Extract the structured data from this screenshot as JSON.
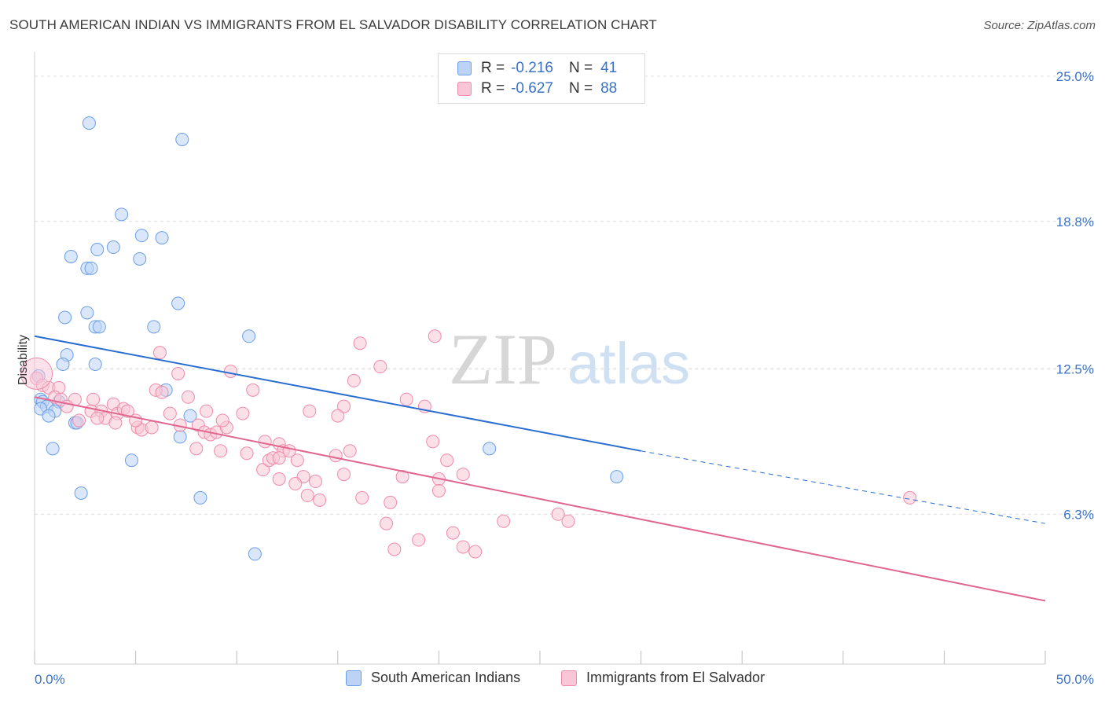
{
  "title": "SOUTH AMERICAN INDIAN VS IMMIGRANTS FROM EL SALVADOR DISABILITY CORRELATION CHART",
  "source": "Source: ZipAtlas.com",
  "watermark": {
    "zip": "ZIP",
    "atlas": "atlas"
  },
  "legend": {
    "rows": [
      {
        "r_label": "R =",
        "r_value": "-0.216",
        "n_label": "N =",
        "n_value": "41",
        "color": "#6b9ee8",
        "fill": "#bcd3f5"
      },
      {
        "r_label": "R =",
        "r_value": "-0.627",
        "n_label": "N =",
        "n_value": "88",
        "color": "#ee8bab",
        "fill": "#f8c6d6"
      }
    ]
  },
  "chart_data": {
    "type": "scatter",
    "title": "SOUTH AMERICAN INDIAN VS IMMIGRANTS FROM EL SALVADOR DISABILITY CORRELATION CHART",
    "xlabel": "",
    "ylabel": "Disability",
    "xlim": [
      0,
      50
    ],
    "ylim": [
      0,
      26
    ],
    "x_tick_labels": [
      "0.0%",
      "50.0%"
    ],
    "y_ticks": [
      6.3,
      12.5,
      18.8,
      25.0
    ],
    "y_tick_labels": [
      "6.3%",
      "12.5%",
      "18.8%",
      "25.0%"
    ],
    "grid": true,
    "series": [
      {
        "name": "South American Indians",
        "color": "#6b9ee8",
        "fill": "#bcd3f5",
        "trend": {
          "x0": 0,
          "y0": 13.9,
          "x1": 30,
          "y1": 9.0,
          "dash_to_x": 50,
          "dash_to_y": 5.9
        },
        "points": [
          [
            2.7,
            23.0
          ],
          [
            7.3,
            22.3
          ],
          [
            4.3,
            19.1
          ],
          [
            5.3,
            18.2
          ],
          [
            6.3,
            18.1
          ],
          [
            3.1,
            17.6
          ],
          [
            3.9,
            17.7
          ],
          [
            1.8,
            17.3
          ],
          [
            5.2,
            17.2
          ],
          [
            2.6,
            16.8
          ],
          [
            2.8,
            16.8
          ],
          [
            7.1,
            15.3
          ],
          [
            1.5,
            14.7
          ],
          [
            2.6,
            14.9
          ],
          [
            3.0,
            14.3
          ],
          [
            3.2,
            14.3
          ],
          [
            5.9,
            14.3
          ],
          [
            10.6,
            13.9
          ],
          [
            1.6,
            13.1
          ],
          [
            1.4,
            12.7
          ],
          [
            3.0,
            12.7
          ],
          [
            6.5,
            11.6
          ],
          [
            0.3,
            11.2
          ],
          [
            0.4,
            11.1
          ],
          [
            1.2,
            11.1
          ],
          [
            0.6,
            10.9
          ],
          [
            0.3,
            10.8
          ],
          [
            1.0,
            10.7
          ],
          [
            0.7,
            10.5
          ],
          [
            7.7,
            10.5
          ],
          [
            2.0,
            10.2
          ],
          [
            2.1,
            10.2
          ],
          [
            7.2,
            9.6
          ],
          [
            0.9,
            9.1
          ],
          [
            4.8,
            8.6
          ],
          [
            22.5,
            9.1
          ],
          [
            2.3,
            7.2
          ],
          [
            8.2,
            7.0
          ],
          [
            28.8,
            7.9
          ],
          [
            10.9,
            4.6
          ],
          [
            0.2,
            12.2
          ]
        ]
      },
      {
        "name": "Immigrants from El Salvador",
        "color": "#ee8bab",
        "fill": "#f8c6d6",
        "trend": {
          "x0": 0,
          "y0": 11.3,
          "x1": 50,
          "y1": 2.6
        },
        "points": [
          [
            0.1,
            12.1
          ],
          [
            0.4,
            11.8
          ],
          [
            0.7,
            11.7
          ],
          [
            1.2,
            11.7
          ],
          [
            1.0,
            11.3
          ],
          [
            1.3,
            11.2
          ],
          [
            2.0,
            11.2
          ],
          [
            2.9,
            11.2
          ],
          [
            3.9,
            11.0
          ],
          [
            1.6,
            10.9
          ],
          [
            2.8,
            10.7
          ],
          [
            3.3,
            10.7
          ],
          [
            3.5,
            10.4
          ],
          [
            4.1,
            10.6
          ],
          [
            4.4,
            10.8
          ],
          [
            4.6,
            10.7
          ],
          [
            2.2,
            10.3
          ],
          [
            3.1,
            10.4
          ],
          [
            4.0,
            10.2
          ],
          [
            5.1,
            10.0
          ],
          [
            5.3,
            9.9
          ],
          [
            5.8,
            10.0
          ],
          [
            5.0,
            10.3
          ],
          [
            6.0,
            11.6
          ],
          [
            6.3,
            11.5
          ],
          [
            7.1,
            12.3
          ],
          [
            6.2,
            13.2
          ],
          [
            7.6,
            11.3
          ],
          [
            6.7,
            10.6
          ],
          [
            7.2,
            10.1
          ],
          [
            8.5,
            10.7
          ],
          [
            8.1,
            10.1
          ],
          [
            8.4,
            9.8
          ],
          [
            8.7,
            9.7
          ],
          [
            9.0,
            9.8
          ],
          [
            9.5,
            10.0
          ],
          [
            9.3,
            10.3
          ],
          [
            10.3,
            10.6
          ],
          [
            9.7,
            12.4
          ],
          [
            10.8,
            11.6
          ],
          [
            8.0,
            9.1
          ],
          [
            9.2,
            9.0
          ],
          [
            10.5,
            8.9
          ],
          [
            11.3,
            8.2
          ],
          [
            11.4,
            9.4
          ],
          [
            11.6,
            8.6
          ],
          [
            11.8,
            8.7
          ],
          [
            12.1,
            9.3
          ],
          [
            12.3,
            9.0
          ],
          [
            12.6,
            9.0
          ],
          [
            12.1,
            8.7
          ],
          [
            13.0,
            8.6
          ],
          [
            13.3,
            7.9
          ],
          [
            12.9,
            7.6
          ],
          [
            13.5,
            7.1
          ],
          [
            13.9,
            7.7
          ],
          [
            14.1,
            6.9
          ],
          [
            13.6,
            10.7
          ],
          [
            15.3,
            10.9
          ],
          [
            14.9,
            8.8
          ],
          [
            15.6,
            9.0
          ],
          [
            16.2,
            7.0
          ],
          [
            15.3,
            8.0
          ],
          [
            16.1,
            13.6
          ],
          [
            15.8,
            12.0
          ],
          [
            17.6,
            6.8
          ],
          [
            17.4,
            5.9
          ],
          [
            17.8,
            4.8
          ],
          [
            18.2,
            7.9
          ],
          [
            17.1,
            12.6
          ],
          [
            19.0,
            5.2
          ],
          [
            19.3,
            10.9
          ],
          [
            19.7,
            9.4
          ],
          [
            20.4,
            8.6
          ],
          [
            20.0,
            7.8
          ],
          [
            20.7,
            5.5
          ],
          [
            21.2,
            4.9
          ],
          [
            21.8,
            4.7
          ],
          [
            20.0,
            7.3
          ],
          [
            21.2,
            8.0
          ],
          [
            23.2,
            6.0
          ],
          [
            25.9,
            6.3
          ],
          [
            26.4,
            6.0
          ],
          [
            18.4,
            11.2
          ],
          [
            19.8,
            13.9
          ],
          [
            43.3,
            7.0
          ],
          [
            12.1,
            7.8
          ],
          [
            15.0,
            10.5
          ]
        ]
      }
    ]
  }
}
